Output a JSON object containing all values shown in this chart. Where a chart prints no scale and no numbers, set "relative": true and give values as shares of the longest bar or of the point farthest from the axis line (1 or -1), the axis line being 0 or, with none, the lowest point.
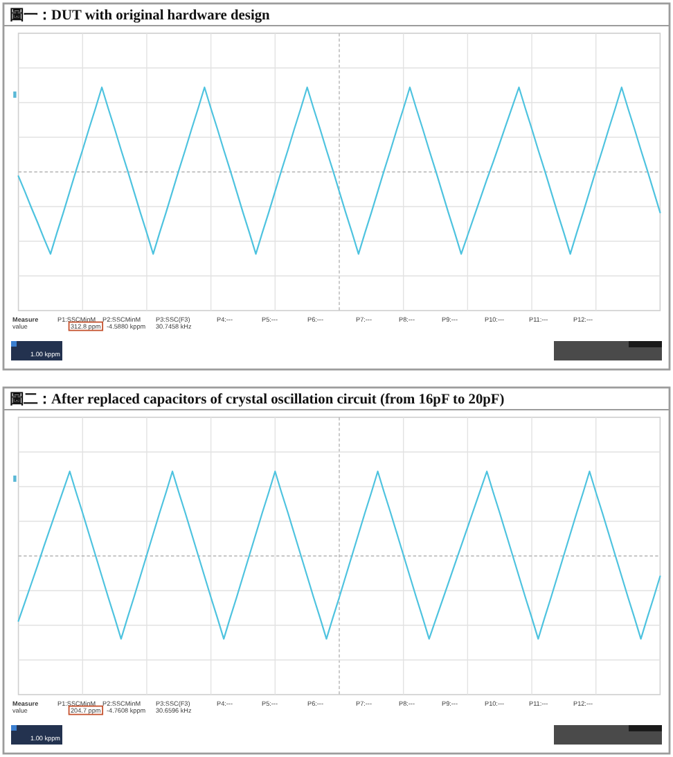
{
  "chart_data": [
    {
      "type": "line",
      "title": "圖一：DUT with original hardware design",
      "categories": [
        null,
        null,
        null,
        null,
        null,
        null,
        null,
        null,
        null,
        null,
        null,
        null,
        null,
        null,
        null,
        null,
        null,
        null,
        null,
        null,
        null,
        null,
        null,
        null,
        null,
        null,
        null,
        null,
        null,
        null,
        null,
        null,
        null,
        null,
        null,
        null,
        null,
        null,
        null,
        null,
        null,
        null,
        null,
        null,
        null,
        null,
        null,
        null,
        null,
        null,
        null,
        null,
        null,
        null,
        null,
        null,
        null,
        null,
        null,
        null,
        null,
        null,
        null,
        null,
        null,
        null,
        null,
        null,
        null,
        null,
        null,
        null,
        null,
        null,
        null,
        null,
        null,
        null,
        null,
        null,
        null,
        null,
        null,
        null,
        null,
        null,
        null,
        null,
        null,
        null,
        null,
        null,
        null,
        null,
        null,
        null,
        null,
        null,
        null,
        null,
        null
      ],
      "series": [
        {
          "color": "#4ec3df",
          "values": [
            -0.05,
            -0.23,
            -0.42,
            -0.6,
            -0.79,
            -0.97,
            -0.72,
            -0.48,
            -0.23,
            0.02,
            0.26,
            0.51,
            0.75,
            1.0,
            0.75,
            0.51,
            0.26,
            0.02,
            -0.23,
            -0.48,
            -0.72,
            -0.97,
            -0.72,
            -0.48,
            -0.23,
            0.02,
            0.26,
            0.51,
            0.75,
            1.0,
            0.75,
            0.51,
            0.26,
            0.02,
            -0.23,
            -0.48,
            -0.72,
            -0.97,
            -0.72,
            -0.48,
            -0.23,
            0.02,
            0.26,
            0.51,
            0.75,
            1.0,
            0.75,
            0.51,
            0.26,
            0.02,
            -0.23,
            -0.48,
            -0.72,
            -0.97,
            -0.72,
            -0.48,
            -0.23,
            0.02,
            0.26,
            0.51,
            0.75,
            1.0,
            0.75,
            0.51,
            0.26,
            0.02,
            -0.23,
            -0.48,
            -0.72,
            -0.97,
            -0.75,
            -0.53,
            -0.31,
            -0.09,
            0.12,
            0.34,
            0.56,
            0.78,
            1.0,
            0.75,
            0.51,
            0.26,
            0.02,
            -0.23,
            -0.48,
            -0.72,
            -0.97,
            -0.72,
            -0.48,
            -0.23,
            0.02,
            0.26,
            0.51,
            0.75,
            1.0,
            0.75,
            0.51,
            0.26,
            0.02,
            -0.23,
            -0.48
          ]
        }
      ],
      "relative": true,
      "grid": true,
      "ref_lines": [
        {
          "axis": "y",
          "value": 0,
          "color": "#b4b4b4",
          "line_style": "dashed"
        }
      ],
      "annotations": [
        "Measure",
        "P1:SSCMinM",
        "P2:SSCMinM",
        "P3:SSC(F3)",
        "P4:---",
        "P5:---",
        "P6:---",
        "P7:---",
        "P8:---",
        "P9:---",
        "P10:---",
        "P11:---",
        "P12:---",
        "value",
        "312.8 ppm",
        "-4.5880 kppm",
        "30.7458 kHz",
        "1.00 kppm"
      ]
    },
    {
      "type": "line",
      "title": "圖二：After replaced capacitors of crystal oscillation circuit (from 16pF to 20pF)",
      "categories": [
        null,
        null,
        null,
        null,
        null,
        null,
        null,
        null,
        null,
        null,
        null,
        null,
        null,
        null,
        null,
        null,
        null,
        null,
        null,
        null,
        null,
        null,
        null,
        null,
        null,
        null,
        null,
        null,
        null,
        null,
        null,
        null,
        null,
        null,
        null,
        null,
        null,
        null,
        null,
        null,
        null,
        null,
        null,
        null,
        null,
        null,
        null,
        null,
        null,
        null,
        null,
        null,
        null,
        null,
        null,
        null,
        null,
        null,
        null,
        null,
        null,
        null,
        null,
        null,
        null,
        null,
        null,
        null,
        null,
        null,
        null,
        null,
        null,
        null,
        null,
        null,
        null,
        null,
        null,
        null,
        null,
        null,
        null,
        null,
        null,
        null,
        null,
        null,
        null,
        null,
        null,
        null,
        null,
        null,
        null,
        null,
        null,
        null,
        null,
        null,
        null
      ],
      "series": [
        {
          "color": "#4ec3df",
          "values": [
            -0.77,
            -0.55,
            -0.33,
            -0.11,
            0.12,
            0.34,
            0.56,
            0.78,
            1.0,
            0.75,
            0.51,
            0.26,
            0.01,
            -0.24,
            -0.49,
            -0.73,
            -0.98,
            -0.73,
            -0.49,
            -0.24,
            0.01,
            0.26,
            0.51,
            0.75,
            1.0,
            0.75,
            0.51,
            0.26,
            0.01,
            -0.24,
            -0.49,
            -0.73,
            -0.98,
            -0.73,
            -0.49,
            -0.24,
            0.01,
            0.26,
            0.51,
            0.75,
            1.0,
            0.75,
            0.51,
            0.26,
            0.01,
            -0.24,
            -0.49,
            -0.73,
            -0.98,
            -0.73,
            -0.49,
            -0.24,
            0.01,
            0.26,
            0.51,
            0.75,
            1.0,
            0.75,
            0.51,
            0.26,
            0.01,
            -0.24,
            -0.49,
            -0.73,
            -0.98,
            -0.76,
            -0.54,
            -0.32,
            -0.1,
            0.12,
            0.34,
            0.56,
            0.78,
            1.0,
            0.75,
            0.51,
            0.26,
            0.01,
            -0.24,
            -0.49,
            -0.73,
            -0.98,
            -0.73,
            -0.49,
            -0.24,
            0.01,
            0.26,
            0.51,
            0.75,
            1.0,
            0.75,
            0.51,
            0.26,
            0.01,
            -0.24,
            -0.49,
            -0.73,
            -0.98,
            -0.73,
            -0.49,
            -0.24
          ]
        }
      ],
      "relative": true,
      "grid": true,
      "ref_lines": [
        {
          "axis": "y",
          "value": 0,
          "color": "#b4b4b4",
          "line_style": "dashed"
        }
      ],
      "annotations": [
        "Measure",
        "P1:SSCMinM",
        "P2:SSCMinM",
        "P3:SSC(F3)",
        "P4:---",
        "P5:---",
        "P6:---",
        "P7:---",
        "P8:---",
        "P9:---",
        "P10:---",
        "P11:---",
        "P12:---",
        "value",
        "204.7 ppm",
        "-4.7608 kppm",
        "30.6596 kHz",
        "1.00 kppm"
      ]
    }
  ]
}
